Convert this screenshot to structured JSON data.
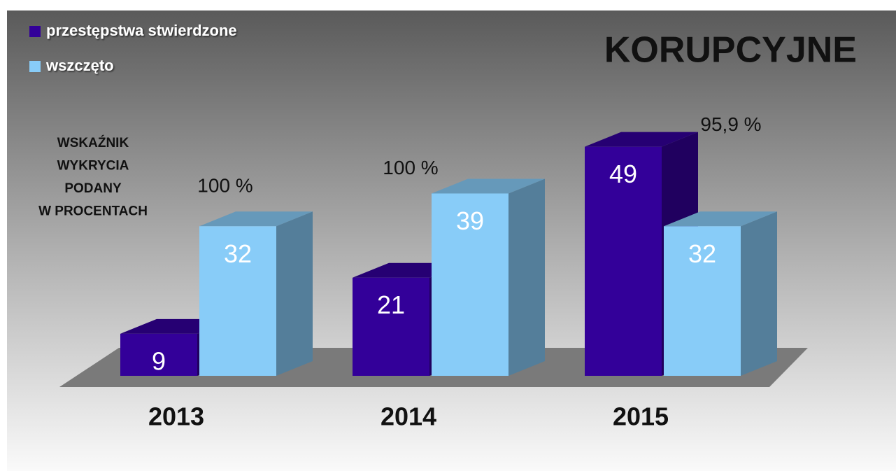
{
  "chart_data": {
    "type": "bar3d",
    "title": "KORUPCYJNE",
    "side_note": [
      "WSKAŹNIK",
      "WYKRYCIA",
      "PODANY",
      "W PROCENTACH"
    ],
    "categories": [
      "2013",
      "2014",
      "2015"
    ],
    "series": [
      {
        "name": "przestępstwa stwierdzone",
        "color": "#330099",
        "values": [
          9,
          21,
          49
        ]
      },
      {
        "name": "wszczęto",
        "color": "#88ccf8",
        "values": [
          32,
          39,
          32
        ]
      }
    ],
    "annotations": [
      "100 %",
      "100 %",
      "95,9 %"
    ],
    "legend": "top-left"
  }
}
